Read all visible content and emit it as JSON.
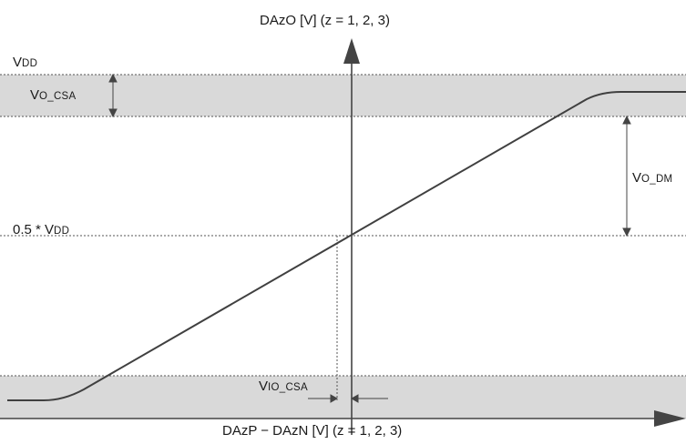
{
  "y_axis_label": "DAzO [V]  (z = 1, 2, 3)",
  "x_axis_label": "DAzP − DAzN [V]  (z = 1, 2, 3)",
  "vdd": {
    "main": "V",
    "sub": "DD"
  },
  "half_vdd": {
    "prefix": "0.5 * V",
    "sub": "DD"
  },
  "vo_csa": {
    "main": "V",
    "sub": "O_CSA"
  },
  "vo_dm": {
    "main": "V",
    "sub": "O_DM"
  },
  "vio_csa": {
    "main": "V",
    "sub": "IO_CSA"
  },
  "colors": {
    "band": "#d9d9d9",
    "line": "#404040",
    "dotted": "#555555"
  }
}
